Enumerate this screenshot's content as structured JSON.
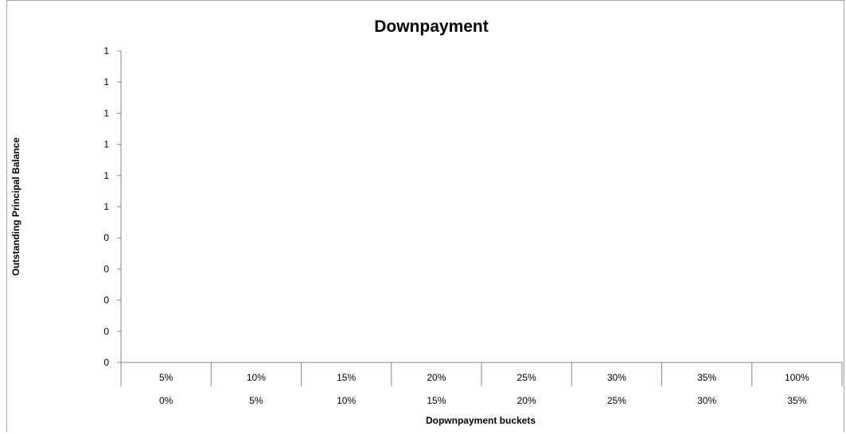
{
  "chart_data": {
    "type": "bar",
    "title": "Downpayment",
    "ylabel": "Outstanding Principal Balance",
    "xlabel": "Dopwnpayment buckets",
    "y_tick_labels": [
      "0",
      "0",
      "0",
      "0",
      "0",
      "1",
      "1",
      "1",
      "1",
      "1",
      "1"
    ],
    "categories_upper": [
      "5%",
      "10%",
      "15%",
      "20%",
      "25%",
      "30%",
      "35%",
      "100%"
    ],
    "categories_lower": [
      "0%",
      "5%",
      "10%",
      "15%",
      "20%",
      "25%",
      "30%",
      "35%"
    ],
    "series": [],
    "grid": false,
    "legend": "none"
  }
}
